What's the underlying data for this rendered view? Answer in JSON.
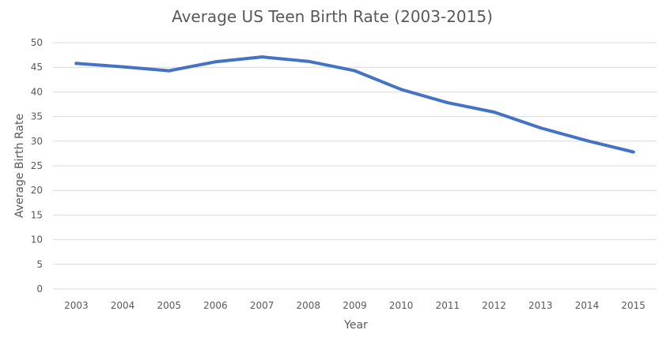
{
  "chart_data": {
    "type": "line",
    "title": "Average US Teen Birth Rate (2003-2015)",
    "xlabel": "Year",
    "ylabel": "Average Birth Rate",
    "categories": [
      "2003",
      "2004",
      "2005",
      "2006",
      "2007",
      "2008",
      "2009",
      "2010",
      "2011",
      "2012",
      "2013",
      "2014",
      "2015"
    ],
    "series": [
      {
        "values": [
          45.8,
          45.1,
          44.3,
          46.1,
          47.1,
          46.2,
          44.3,
          40.5,
          37.8,
          35.9,
          32.7,
          30.1,
          27.8
        ],
        "color": "#4472c4"
      }
    ],
    "ylim": [
      0,
      50
    ],
    "yticks": [
      0,
      5,
      10,
      15,
      20,
      25,
      30,
      35,
      40,
      45,
      50
    ],
    "grid": true,
    "legend": "none"
  }
}
